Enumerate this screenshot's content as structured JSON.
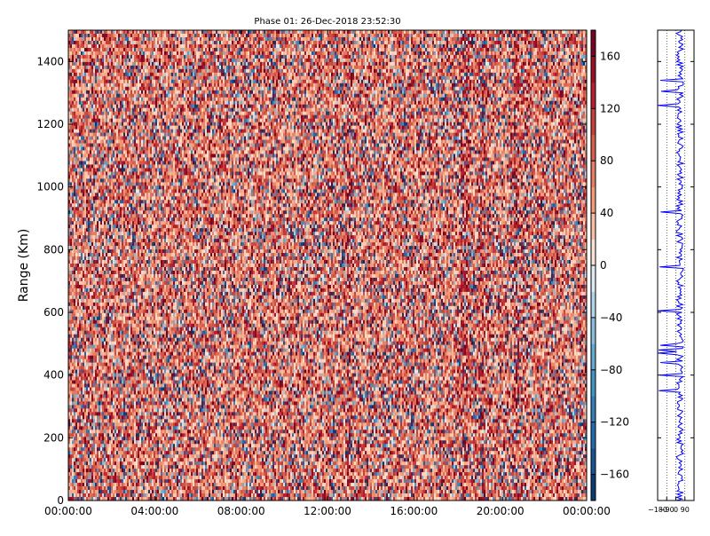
{
  "chart_data": [
    {
      "type": "heatmap",
      "title": "Phase 01: 26-Dec-2018 23:52:30",
      "xlabel": "",
      "ylabel": "Range (Km)",
      "x_ticks": [
        "00:00:00",
        "04:00:00",
        "08:00:00",
        "12:00:00",
        "16:00:00",
        "20:00:00",
        "00:00:00"
      ],
      "xlim_hours": [
        0,
        24
      ],
      "ylim": [
        0,
        1500
      ],
      "y_ticks": [
        0,
        200,
        400,
        600,
        800,
        1000,
        1200,
        1400
      ],
      "value_description": "Phase values in degrees shown as a dense red-white-blue noise field; cells are predominantly light red (positive), with scattered blue (negative) and dark red cells and several darker vertical stripes near 13:00, 18:00-19:00 and 20:30-21:00",
      "color_scale": "RdBu_r (blue = -180, white = 0, red = +180)",
      "colorbar": {
        "range": [
          -180,
          180
        ],
        "ticks": [
          -160,
          -120,
          -80,
          -40,
          0,
          40,
          80,
          120,
          160
        ],
        "tick_labels": [
          "−160",
          "−120",
          "−80",
          "−40",
          "0",
          "40",
          "80",
          "120",
          "160"
        ],
        "low_color": "#053061",
        "mid_color": "#f7f7f7",
        "high_color": "#67001f"
      }
    },
    {
      "type": "line",
      "description": "Phase profile versus range (shared range axis 0-1500 Km), noisy blue trace centered near +40 with excursions toward -180",
      "xlim": [
        -180,
        180
      ],
      "x_tick_labels": [
        "−180",
        "−90",
        "0",
        "90"
      ],
      "ylim": [
        0,
        1500
      ],
      "series_color": "#0000ff"
    }
  ]
}
